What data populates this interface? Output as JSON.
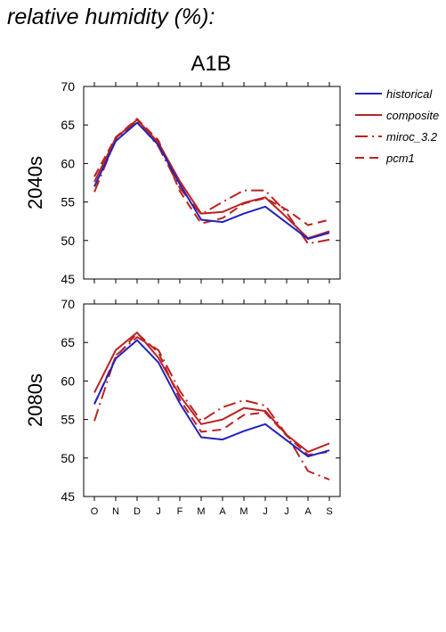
{
  "heading": "relative humidity (%):",
  "subtitle": "A1B",
  "legend": [
    {
      "name": "historical",
      "color": "#2222bb",
      "dash": "none"
    },
    {
      "name": "composite",
      "color": "#bb2222",
      "dash": "none"
    },
    {
      "name": "miroc_3.2",
      "color": "#bb2222",
      "dash": "dashdot"
    },
    {
      "name": "pcm1",
      "color": "#bb2222",
      "dash": "dashed"
    }
  ],
  "chart_data": [
    {
      "type": "line",
      "panel_label": "2040s",
      "categories": [
        "O",
        "N",
        "D",
        "J",
        "F",
        "M",
        "A",
        "M",
        "J",
        "J",
        "A",
        "S"
      ],
      "ylim": [
        45,
        70
      ],
      "yticks": [
        45,
        50,
        55,
        60,
        65,
        70
      ],
      "grid": false,
      "series": [
        {
          "name": "historical",
          "values": [
            57.0,
            62.9,
            65.3,
            62.4,
            57.3,
            52.7,
            52.4,
            53.5,
            54.4,
            52.3,
            50.2,
            51.0
          ]
        },
        {
          "name": "composite",
          "values": [
            57.6,
            63.3,
            65.7,
            62.7,
            57.7,
            53.5,
            53.7,
            54.9,
            55.6,
            53.0,
            50.3,
            51.2
          ]
        },
        {
          "name": "miroc_3.2",
          "values": [
            56.3,
            63.1,
            65.5,
            62.2,
            56.8,
            53.4,
            55.0,
            56.5,
            56.5,
            53.6,
            49.6,
            50.1
          ]
        },
        {
          "name": "pcm1",
          "values": [
            58.3,
            63.4,
            65.8,
            63.0,
            56.4,
            52.2,
            52.9,
            54.8,
            55.5,
            54.0,
            52.0,
            52.7
          ]
        }
      ]
    },
    {
      "type": "line",
      "panel_label": "2080s",
      "categories": [
        "O",
        "N",
        "D",
        "J",
        "F",
        "M",
        "A",
        "M",
        "J",
        "J",
        "A",
        "S"
      ],
      "ylim": [
        45,
        70
      ],
      "yticks": [
        45,
        50,
        55,
        60,
        65,
        70
      ],
      "grid": false,
      "series": [
        {
          "name": "historical",
          "values": [
            57.0,
            62.9,
            65.3,
            62.4,
            57.1,
            52.7,
            52.4,
            53.5,
            54.4,
            52.3,
            50.2,
            51.0
          ]
        },
        {
          "name": "composite",
          "values": [
            58.5,
            64.0,
            66.3,
            63.0,
            58.1,
            54.4,
            55.0,
            56.5,
            56.1,
            53.0,
            50.8,
            51.9
          ]
        },
        {
          "name": "miroc_3.2",
          "values": [
            54.8,
            63.3,
            65.7,
            64.0,
            58.7,
            54.8,
            56.6,
            57.5,
            56.8,
            53.0,
            48.3,
            47.2
          ]
        },
        {
          "name": "pcm1",
          "values": [
            57.0,
            63.1,
            66.2,
            63.7,
            57.6,
            53.4,
            53.7,
            55.6,
            55.9,
            52.9,
            50.4,
            50.8
          ]
        }
      ]
    }
  ]
}
